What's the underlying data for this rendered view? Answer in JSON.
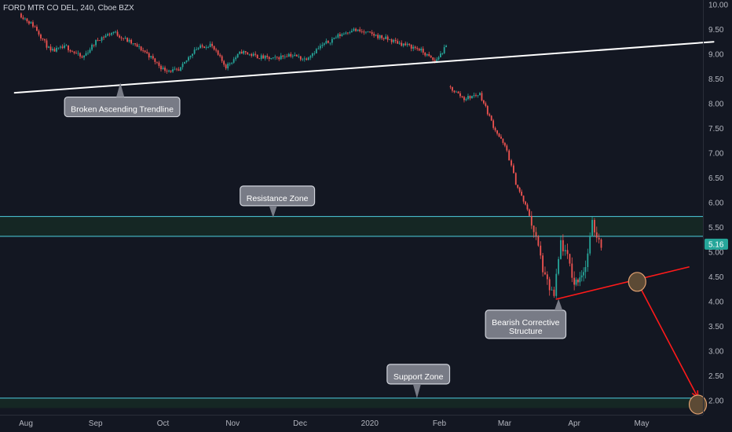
{
  "header": {
    "symbol": "FORD MTR CO DEL",
    "interval": "240",
    "source": "Cboe BZX"
  },
  "chart_data": {
    "type": "candlestick",
    "ylim": [
      1.85,
      10.0
    ],
    "x_categories": [
      "Aug",
      "Sep",
      "Oct",
      "Nov",
      "Dec",
      "2020",
      "Feb",
      "Mar",
      "Apr",
      "May"
    ],
    "y_ticks": [
      "10.00",
      "9.50",
      "9.00",
      "8.50",
      "8.00",
      "7.50",
      "7.00",
      "6.50",
      "6.00",
      "5.50",
      "5.00",
      "4.50",
      "4.00",
      "3.50",
      "3.00",
      "2.50",
      "2.00"
    ],
    "last_price": "5.16",
    "colors": {
      "up": "#26a69a",
      "down": "#ef5350",
      "zone_line": "#4dd0e1",
      "zone_fill": "#162a24",
      "trend": "#ffffff",
      "red": "#ff1a1a",
      "circle": "#e0a070"
    },
    "price_path": [
      [
        "2019-07-29",
        9.82
      ],
      [
        "2019-08-05",
        9.55
      ],
      [
        "2019-08-12",
        9.05
      ],
      [
        "2019-08-19",
        9.15
      ],
      [
        "2019-08-26",
        8.92
      ],
      [
        "2019-09-02",
        9.3
      ],
      [
        "2019-09-09",
        9.45
      ],
      [
        "2019-09-16",
        9.25
      ],
      [
        "2019-09-23",
        9.05
      ],
      [
        "2019-10-01",
        8.7
      ],
      [
        "2019-10-08",
        8.65
      ],
      [
        "2019-10-15",
        9.1
      ],
      [
        "2019-10-22",
        9.2
      ],
      [
        "2019-10-29",
        8.75
      ],
      [
        "2019-11-05",
        9.05
      ],
      [
        "2019-11-12",
        8.95
      ],
      [
        "2019-11-19",
        8.9
      ],
      [
        "2019-11-26",
        9.0
      ],
      [
        "2019-12-03",
        8.9
      ],
      [
        "2019-12-10",
        9.15
      ],
      [
        "2019-12-17",
        9.35
      ],
      [
        "2019-12-24",
        9.5
      ],
      [
        "2020-01-02",
        9.4
      ],
      [
        "2020-01-09",
        9.3
      ],
      [
        "2020-01-16",
        9.2
      ],
      [
        "2020-01-23",
        9.1
      ],
      [
        "2020-01-30",
        8.85
      ],
      [
        "2020-02-04",
        9.15
      ],
      [
        "2020-02-05",
        8.35
      ],
      [
        "2020-02-12",
        8.1
      ],
      [
        "2020-02-19",
        8.2
      ],
      [
        "2020-02-25",
        7.55
      ],
      [
        "2020-03-02",
        7.05
      ],
      [
        "2020-03-06",
        6.4
      ],
      [
        "2020-03-12",
        5.75
      ],
      [
        "2020-03-16",
        5.1
      ],
      [
        "2020-03-19",
        4.45
      ],
      [
        "2020-03-23",
        4.1
      ],
      [
        "2020-03-26",
        5.2
      ],
      [
        "2020-03-30",
        4.75
      ],
      [
        "2020-04-01",
        4.35
      ],
      [
        "2020-04-06",
        4.7
      ],
      [
        "2020-04-09",
        5.55
      ],
      [
        "2020-04-13",
        5.16
      ]
    ],
    "resistance_zone": [
      5.32,
      5.72
    ],
    "support_zone": [
      1.85,
      2.05
    ],
    "ascending_trendline": [
      [
        "2019-07-27",
        8.22
      ],
      [
        "2020-06-02",
        9.25
      ]
    ],
    "corrective_trendline": [
      [
        "2020-03-24",
        4.05
      ],
      [
        "2020-05-22",
        4.7
      ]
    ],
    "projection_arrow": [
      [
        "2020-04-29",
        4.4
      ],
      [
        "2020-05-26",
        2.0
      ]
    ],
    "circles": [
      [
        "2020-04-29",
        4.4
      ],
      [
        "2020-05-26",
        1.92
      ]
    ],
    "annotations": [
      {
        "id": "broken",
        "text": [
          "Broken Ascending Trendline"
        ],
        "date": "2019-09-12",
        "price": 8.42
      },
      {
        "id": "resistance",
        "text": [
          "Resistance Zone"
        ],
        "date": "2019-11-19",
        "price": 5.7
      },
      {
        "id": "bearish",
        "text": [
          "Bearish Corrective",
          "Structure"
        ],
        "date": "2020-03-25",
        "price": 4.05
      },
      {
        "id": "support",
        "text": [
          "Support Zone"
        ],
        "date": "2020-01-22",
        "price": 2.05
      }
    ]
  }
}
